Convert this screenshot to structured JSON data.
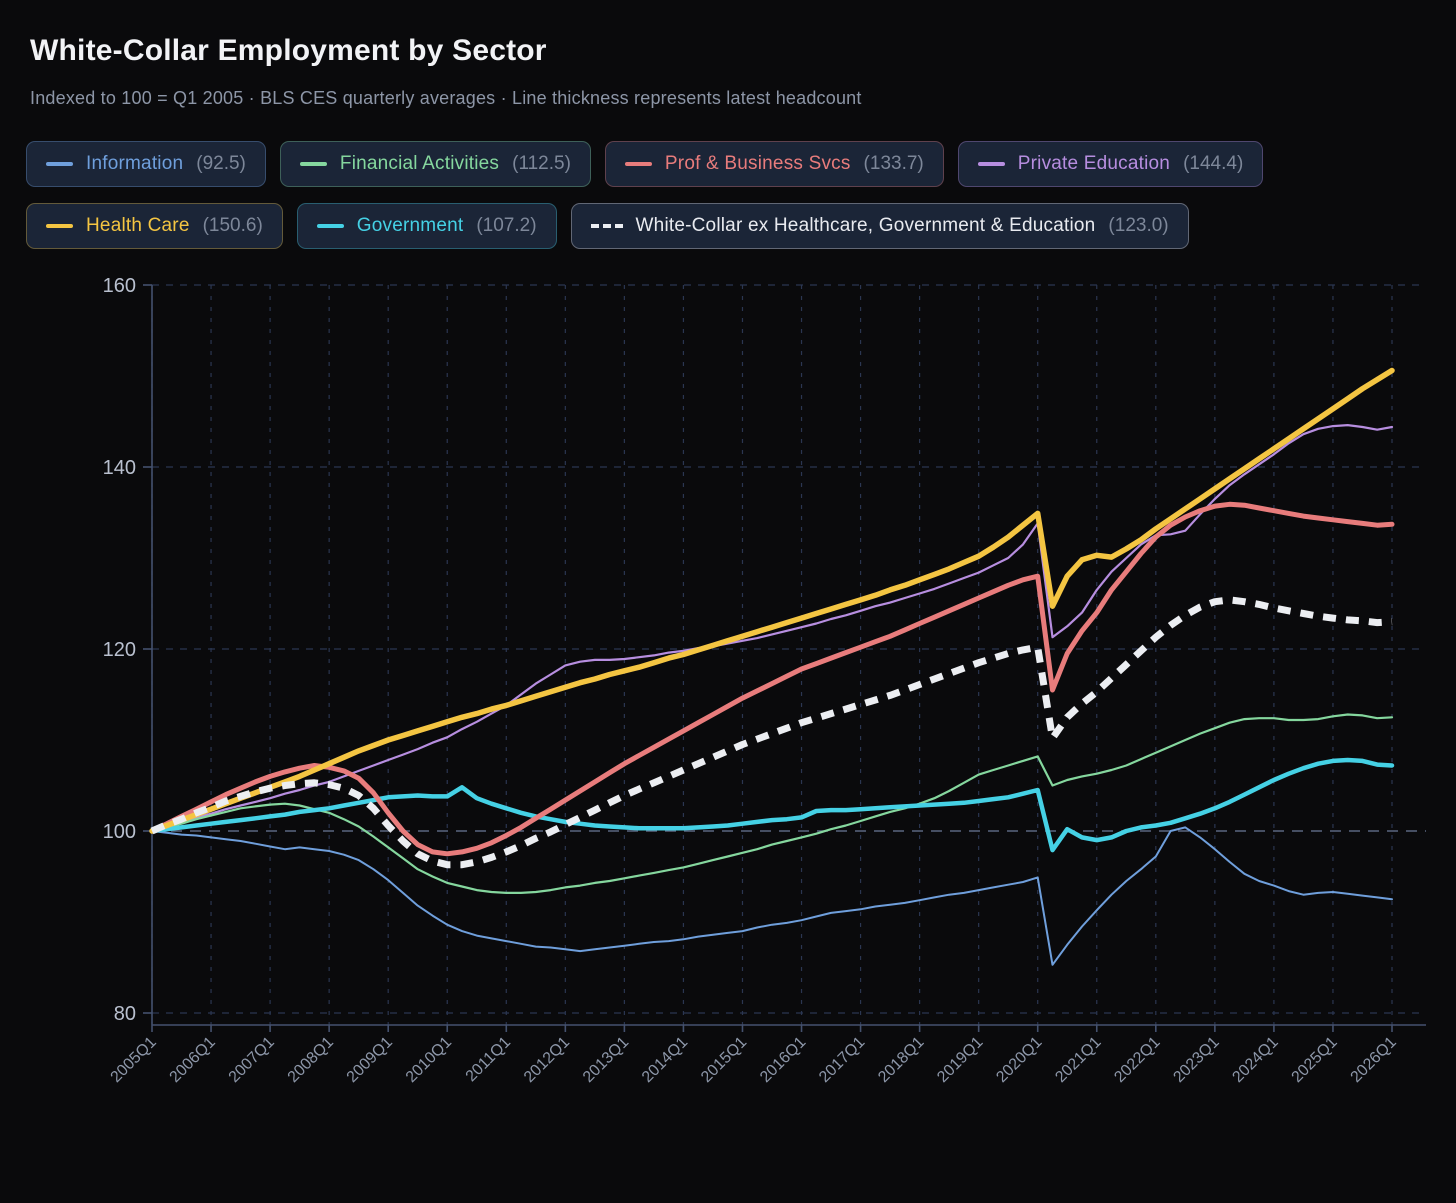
{
  "header": {
    "title": "White-Collar Employment by Sector",
    "subtitle": "Indexed to 100 = Q1 2005 · BLS CES quarterly averages · Line thickness represents latest headcount"
  },
  "colors": {
    "background": "#0a0a0c",
    "title_text": "#f2f3f6",
    "subtitle_text": "#8d96a7",
    "chip_background": "#1b2537",
    "chip_value_text": "#7d8799",
    "gridline": "#2b3651",
    "baseline_100": "#5a6680",
    "axis_line": "#44516e",
    "y_tick_text": "#b9c0cf",
    "x_tick_text": "#8d97a9"
  },
  "chart_data": {
    "type": "line",
    "title": "White-Collar Employment by Sector",
    "subtitle": "Indexed to 100 = Q1 2005 · BLS CES quarterly averages · Line thickness represents latest headcount",
    "x_start": "2005Q1",
    "x_end": "2026Q1",
    "quarters": 85,
    "x_ticks": [
      "2005Q1",
      "2006Q1",
      "2007Q1",
      "2008Q1",
      "2009Q1",
      "2010Q1",
      "2011Q1",
      "2012Q1",
      "2013Q1",
      "2014Q1",
      "2015Q1",
      "2016Q1",
      "2017Q1",
      "2018Q1",
      "2019Q1",
      "2020Q1",
      "2021Q1",
      "2022Q1",
      "2023Q1",
      "2024Q1",
      "2025Q1",
      "2026Q1"
    ],
    "y_ticks": [
      80,
      100,
      120,
      140,
      160
    ],
    "ylim": [
      80,
      160
    ],
    "baseline_value": 100,
    "grid": "dashed",
    "legend_position": "top",
    "draw_order": [
      0,
      3,
      1,
      5,
      2,
      4,
      6
    ],
    "series": [
      {
        "name": "Information",
        "latest": 92.5,
        "color": "#6f9fdc",
        "thickness": 2,
        "dashed": false,
        "values": [
          100,
          99.8,
          99.6,
          99.5,
          99.3,
          99.1,
          98.9,
          98.6,
          98.3,
          98,
          98.2,
          98,
          97.8,
          97.4,
          96.8,
          95.8,
          94.6,
          93.2,
          91.8,
          90.7,
          89.7,
          89,
          88.5,
          88.2,
          87.9,
          87.6,
          87.3,
          87.2,
          87,
          86.8,
          87,
          87.2,
          87.4,
          87.6,
          87.8,
          87.9,
          88.1,
          88.4,
          88.6,
          88.8,
          89,
          89.4,
          89.7,
          89.9,
          90.2,
          90.6,
          91,
          91.2,
          91.4,
          91.7,
          91.9,
          92.1,
          92.4,
          92.7,
          93,
          93.2,
          93.5,
          93.8,
          94.1,
          94.4,
          94.9,
          85.3,
          87.5,
          89.5,
          91.3,
          93,
          94.5,
          95.8,
          97.2,
          100,
          100.4,
          99.3,
          98,
          96.6,
          95.3,
          94.5,
          94,
          93.4,
          93,
          93.2,
          93.3,
          93.1,
          92.9,
          92.7,
          92.5
        ]
      },
      {
        "name": "Financial Activities",
        "latest": 112.5,
        "color": "#85d79e",
        "thickness": 2.2,
        "dashed": false,
        "values": [
          100,
          100.4,
          100.8,
          101.3,
          101.7,
          102.1,
          102.5,
          102.7,
          102.9,
          103,
          102.8,
          102.4,
          102,
          101.3,
          100.5,
          99.4,
          98.2,
          97,
          95.8,
          95,
          94.3,
          93.9,
          93.5,
          93.3,
          93.2,
          93.2,
          93.3,
          93.5,
          93.8,
          94,
          94.3,
          94.5,
          94.8,
          95.1,
          95.4,
          95.7,
          96,
          96.4,
          96.8,
          97.2,
          97.6,
          98,
          98.5,
          98.9,
          99.3,
          99.7,
          100.2,
          100.6,
          101.1,
          101.6,
          102.1,
          102.5,
          103,
          103.6,
          104.4,
          105.3,
          106.2,
          106.7,
          107.2,
          107.7,
          108.2,
          105,
          105.6,
          106,
          106.3,
          106.7,
          107.2,
          107.9,
          108.6,
          109.3,
          110,
          110.7,
          111.3,
          111.9,
          112.3,
          112.4,
          112.4,
          112.2,
          112.2,
          112.3,
          112.6,
          112.8,
          112.7,
          112.4,
          112.5
        ]
      },
      {
        "name": "Prof & Business Svcs",
        "latest": 133.7,
        "color": "#e87c7c",
        "thickness": 5,
        "dashed": false,
        "values": [
          100,
          100.8,
          101.6,
          102.4,
          103.2,
          104,
          104.7,
          105.4,
          106,
          106.5,
          106.9,
          107.2,
          107,
          106.6,
          105.8,
          104.2,
          102,
          100,
          98.5,
          97.7,
          97.5,
          97.7,
          98.1,
          98.7,
          99.5,
          100.4,
          101.4,
          102.4,
          103.4,
          104.4,
          105.4,
          106.4,
          107.4,
          108.3,
          109.2,
          110.1,
          111,
          111.9,
          112.8,
          113.7,
          114.6,
          115.4,
          116.2,
          117,
          117.8,
          118.4,
          119,
          119.6,
          120.2,
          120.8,
          121.4,
          122.1,
          122.8,
          123.5,
          124.2,
          124.9,
          125.6,
          126.3,
          127,
          127.6,
          128,
          115.5,
          119.5,
          122,
          124,
          126.5,
          128.5,
          130.5,
          132.3,
          133.6,
          134.5,
          135.2,
          135.7,
          135.9,
          135.8,
          135.5,
          135.2,
          134.9,
          134.6,
          134.4,
          134.2,
          134,
          133.8,
          133.6,
          133.7
        ]
      },
      {
        "name": "Private Education",
        "latest": 144.4,
        "color": "#b78ee0",
        "thickness": 2.2,
        "dashed": false,
        "values": [
          100,
          100.5,
          101,
          101.5,
          101.9,
          102.4,
          102.8,
          103.2,
          103.6,
          104.1,
          104.5,
          105,
          105.4,
          106,
          106.6,
          107.2,
          107.8,
          108.4,
          109,
          109.7,
          110.3,
          111.2,
          112,
          112.9,
          113.8,
          115,
          116.2,
          117.2,
          118.2,
          118.6,
          118.8,
          118.8,
          118.9,
          119.1,
          119.3,
          119.6,
          119.8,
          120.1,
          120.3,
          120.6,
          120.9,
          121.2,
          121.6,
          122,
          122.4,
          122.8,
          123.3,
          123.7,
          124.2,
          124.7,
          125.1,
          125.6,
          126.1,
          126.6,
          127.2,
          127.8,
          128.4,
          129.2,
          130,
          131.5,
          133.8,
          121.3,
          122.5,
          124,
          126.5,
          128.5,
          130,
          131.5,
          132.5,
          132.6,
          133,
          134.8,
          136.5,
          138,
          139.2,
          140.3,
          141.4,
          142.6,
          143.6,
          144.2,
          144.5,
          144.6,
          144.4,
          144.1,
          144.4
        ]
      },
      {
        "name": "Health Care",
        "latest": 150.6,
        "color": "#f4c542",
        "thickness": 5.5,
        "dashed": false,
        "values": [
          100,
          100.6,
          101.2,
          101.8,
          102.4,
          103,
          103.6,
          104.2,
          104.8,
          105.4,
          106,
          106.7,
          107.4,
          108.1,
          108.8,
          109.4,
          110,
          110.5,
          111,
          111.5,
          112,
          112.5,
          112.9,
          113.4,
          113.8,
          114.3,
          114.8,
          115.3,
          115.8,
          116.3,
          116.7,
          117.2,
          117.6,
          118,
          118.5,
          119,
          119.4,
          119.9,
          120.4,
          120.9,
          121.4,
          121.9,
          122.4,
          122.9,
          123.4,
          123.9,
          124.4,
          124.9,
          125.4,
          125.9,
          126.5,
          127,
          127.6,
          128.2,
          128.8,
          129.5,
          130.2,
          131.2,
          132.3,
          133.6,
          134.9,
          124.7,
          128,
          129.8,
          130.3,
          130.1,
          131,
          132,
          133.2,
          134.3,
          135.4,
          136.5,
          137.6,
          138.7,
          139.8,
          140.9,
          142,
          143.1,
          144.2,
          145.3,
          146.4,
          147.5,
          148.6,
          149.6,
          150.6
        ]
      },
      {
        "name": "Government",
        "latest": 107.2,
        "color": "#45d1e5",
        "thickness": 4.5,
        "dashed": false,
        "values": [
          100,
          100.2,
          100.4,
          100.6,
          100.8,
          101,
          101.2,
          101.4,
          101.6,
          101.8,
          102.1,
          102.3,
          102.5,
          102.8,
          103.1,
          103.4,
          103.7,
          103.8,
          103.9,
          103.8,
          103.8,
          104.8,
          103.6,
          103,
          102.5,
          102,
          101.6,
          101.3,
          101,
          100.8,
          100.6,
          100.5,
          100.4,
          100.3,
          100.3,
          100.3,
          100.3,
          100.4,
          100.5,
          100.6,
          100.8,
          101,
          101.2,
          101.3,
          101.5,
          102.2,
          102.3,
          102.3,
          102.4,
          102.5,
          102.6,
          102.7,
          102.8,
          102.9,
          103,
          103.1,
          103.3,
          103.5,
          103.7,
          104.1,
          104.5,
          97.9,
          100.2,
          99.3,
          99,
          99.3,
          100,
          100.4,
          100.6,
          100.9,
          101.4,
          101.9,
          102.5,
          103.2,
          104,
          104.8,
          105.6,
          106.3,
          106.9,
          107.4,
          107.7,
          107.8,
          107.7,
          107.3,
          107.2
        ]
      },
      {
        "name": "White-Collar ex Healthcare, Government & Education",
        "latest": 123.0,
        "color": "#eceef2",
        "thickness": 7,
        "dashed": true,
        "values": [
          100,
          100.7,
          101.3,
          102,
          102.6,
          103.3,
          103.8,
          104.3,
          104.7,
          105,
          105.2,
          105.3,
          105.1,
          104.7,
          103.9,
          102.5,
          100.6,
          98.9,
          97.5,
          96.7,
          96.3,
          96.3,
          96.6,
          97.1,
          97.7,
          98.4,
          99.2,
          99.9,
          100.7,
          101.5,
          102.3,
          103.1,
          103.9,
          104.6,
          105.3,
          106,
          106.7,
          107.4,
          108.1,
          108.8,
          109.5,
          110.1,
          110.7,
          111.3,
          111.9,
          112.4,
          112.9,
          113.4,
          113.9,
          114.4,
          114.9,
          115.5,
          116.1,
          116.7,
          117.3,
          117.9,
          118.5,
          119,
          119.5,
          119.9,
          120.2,
          110.2,
          112.5,
          114,
          115.3,
          116.8,
          118.3,
          119.8,
          121.3,
          122.6,
          123.7,
          124.6,
          125.2,
          125.4,
          125.2,
          124.9,
          124.5,
          124.2,
          123.9,
          123.6,
          123.4,
          123.2,
          123.1,
          122.9,
          123
        ]
      }
    ]
  }
}
